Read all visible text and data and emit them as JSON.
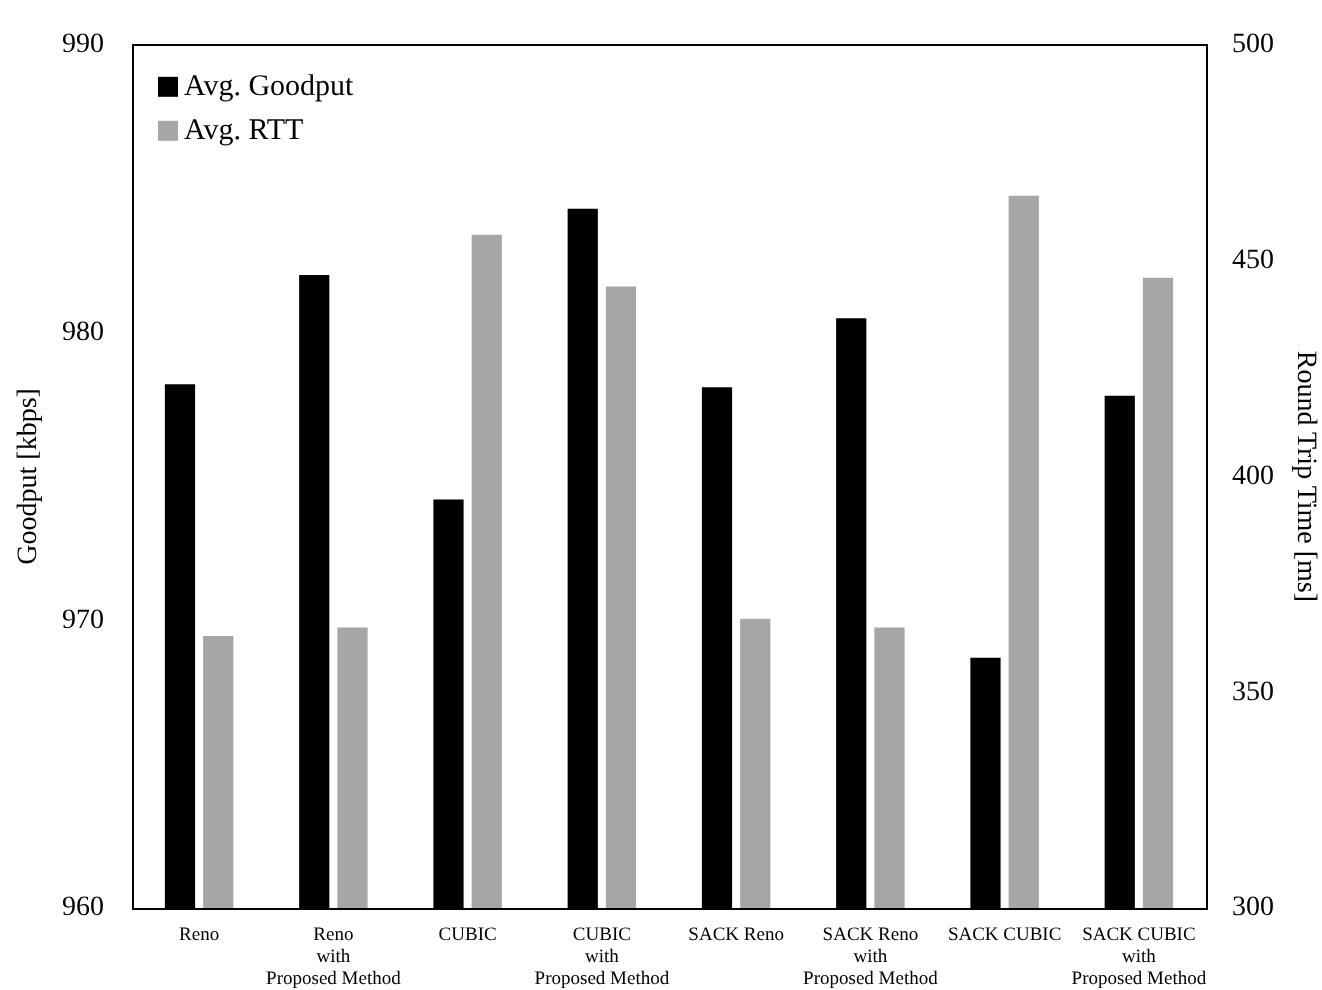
{
  "chart_data": {
    "type": "bar",
    "categories": [
      "Reno",
      "Reno\nwith\nProposed Method",
      "CUBIC",
      "CUBIC\nwith\nProposed Method",
      "SACK Reno",
      "SACK Reno\nwith\nProposed Method",
      "SACK CUBIC",
      "SACK CUBIC\nwith\nProposed Method"
    ],
    "series": [
      {
        "name": "Avg. Goodput",
        "color": "#000000",
        "values": [
          978.2,
          982.0,
          974.2,
          984.3,
          978.1,
          980.5,
          968.7,
          977.8
        ]
      },
      {
        "name": "Avg. RTT",
        "color": "#a6a6a6",
        "axis": "y2",
        "values": [
          363,
          365,
          456,
          444,
          367,
          365,
          465,
          446
        ]
      }
    ],
    "ylabel": "Goodput [kbps]",
    "y2label": "Round Trip Time [ms]",
    "ylim": [
      960,
      990
    ],
    "yticks": [
      960,
      970,
      980,
      990
    ],
    "y2lim": [
      300,
      500
    ],
    "y2ticks": [
      300,
      350,
      400,
      450,
      500
    ],
    "grid": false,
    "legend": "top left"
  }
}
